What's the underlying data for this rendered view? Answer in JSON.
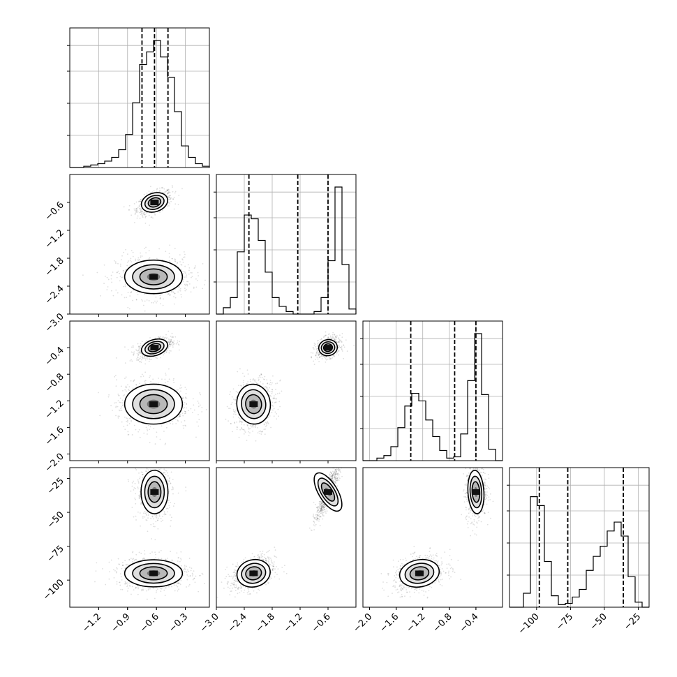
{
  "chart_data": {
    "type": "corner",
    "n_params": 4,
    "quantile_lines": [
      [
        -0.75,
        -0.62,
        -0.48
      ],
      [
        -2.3,
        -1.25,
        -0.6
      ],
      [
        -1.38,
        -0.72,
        -0.4
      ],
      [
        -98,
        -77,
        -36
      ]
    ],
    "ranges": [
      [
        -1.5,
        -0.05
      ],
      [
        -3.0,
        0.0
      ],
      [
        -2.1,
        0.0
      ],
      [
        -120,
        -17
      ]
    ],
    "ticks": [
      [
        -1.2,
        -0.9,
        -0.6,
        -0.3
      ],
      [
        -3.0,
        -2.4,
        -1.8,
        -1.2,
        -0.6
      ],
      [
        -2.0,
        -1.6,
        -1.2,
        -0.8,
        -0.4
      ],
      [
        -100,
        -75,
        -50,
        -25
      ]
    ],
    "tick_labels": [
      [
        "−1.2",
        "−0.9",
        "−0.6",
        "−0.3"
      ],
      [
        "−3.0",
        "−2.4",
        "−1.8",
        "−1.2",
        "−0.6"
      ],
      [
        "−2.0",
        "−1.6",
        "−1.2",
        "−0.8",
        "−0.4"
      ],
      [
        "−100",
        "−75",
        "−50",
        "−25"
      ]
    ],
    "histograms": [
      [
        0.0,
        0.0,
        0.01,
        0.02,
        0.03,
        0.05,
        0.08,
        0.14,
        0.26,
        0.51,
        0.81,
        0.91,
        1.0,
        0.87,
        0.71,
        0.44,
        0.17,
        0.08,
        0.03,
        0.01
      ],
      [
        0.0,
        0.05,
        0.13,
        0.49,
        0.78,
        0.75,
        0.58,
        0.33,
        0.13,
        0.06,
        0.02,
        0.0,
        0.0,
        0.0,
        0.02,
        0.13,
        0.42,
        1.0,
        0.39,
        0.04
      ],
      [
        0.0,
        0.0,
        0.02,
        0.04,
        0.11,
        0.26,
        0.43,
        0.53,
        0.47,
        0.32,
        0.19,
        0.08,
        0.02,
        0.03,
        0.21,
        0.63,
        1.0,
        0.52,
        0.09,
        0.0
      ],
      [
        0.0,
        0.0,
        0.11,
        0.87,
        0.8,
        0.36,
        0.09,
        0.02,
        0.03,
        0.08,
        0.14,
        0.29,
        0.4,
        0.48,
        0.6,
        0.67,
        0.56,
        0.24,
        0.04,
        0.0
      ]
    ],
    "modes": [
      {
        "centers": [
          -0.62,
          -0.6,
          -0.4,
          -35
        ],
        "sigmas": [
          0.07,
          0.1,
          0.06,
          8
        ],
        "corr": {
          "0-1": 0.5,
          "0-2": 0.5,
          "1-2": 0.3,
          "0-3": 0.0,
          "1-3": 0.9,
          "2-3": 0.1
        },
        "weight": 0.5
      },
      {
        "centers": [
          -0.63,
          -2.2,
          -1.25,
          -95
        ],
        "sigmas": [
          0.15,
          0.18,
          0.15,
          5
        ],
        "corr": {
          "0-1": 0.0,
          "0-2": 0.0,
          "1-2": 0.2,
          "0-3": 0.0,
          "1-3": 0.4,
          "2-3": 0.3
        },
        "weight": 0.5
      }
    ],
    "grid": true,
    "legend": "none"
  }
}
